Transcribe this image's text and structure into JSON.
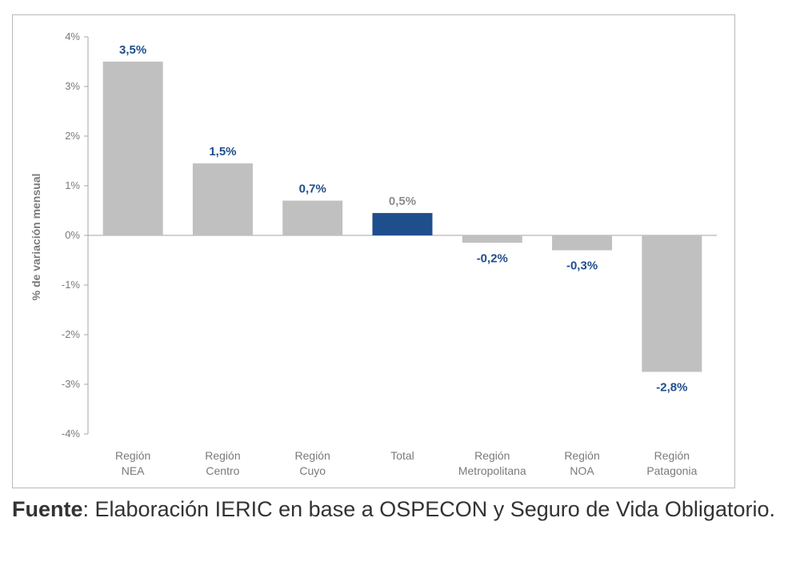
{
  "chart_data": {
    "type": "bar",
    "title": "",
    "xlabel": "",
    "ylabel": "% de variación mensual",
    "ylim": [
      -4,
      4
    ],
    "y_ticks": [
      "4%",
      "3%",
      "2%",
      "1%",
      "0%",
      "-1%",
      "-2%",
      "-3%",
      "-4%"
    ],
    "categories": [
      [
        "Región",
        "NEA"
      ],
      [
        "Región",
        "Centro"
      ],
      [
        "Región",
        "Cuyo"
      ],
      [
        "Total"
      ],
      [
        "Región",
        "Metropolitana"
      ],
      [
        "Región",
        "NOA"
      ],
      [
        "Región",
        "Patagonia"
      ]
    ],
    "values": [
      3.5,
      1.5,
      0.7,
      0.5,
      -0.2,
      -0.3,
      -2.8
    ],
    "bar_heights_actual": [
      3.5,
      1.45,
      0.7,
      0.45,
      -0.15,
      -0.3,
      -2.75
    ],
    "data_labels": [
      "3,5%",
      "1,5%",
      "0,7%",
      "0,5%",
      "-0,2%",
      "-0,3%",
      "-2,8%"
    ],
    "colors": {
      "bar_default": "#c0c0c0",
      "bar_highlight": "#1f4e8c",
      "highlight_index": 3,
      "label_blue": "#1f4e8c",
      "label_grey": "#8c8c8c"
    },
    "grid": false,
    "legend": "none"
  },
  "caption": {
    "source_label": "Fuente",
    "text": ": Elaboración IERIC en base a OSPECON y Seguro de Vida Obligatorio."
  }
}
